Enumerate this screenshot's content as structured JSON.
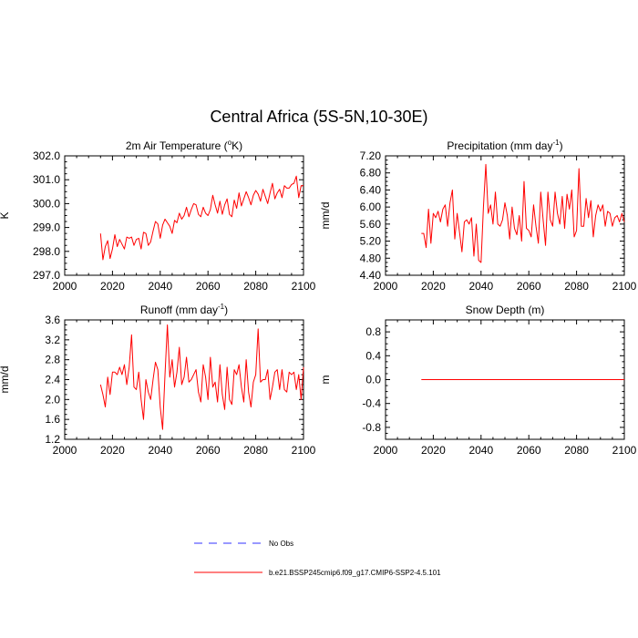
{
  "figure_title": "Central Africa (5S-5N,10-30E)",
  "legend": {
    "obs_label": "No Obs",
    "model_label": "b.e21.BSSP245cmip6.f09_g17.CMIP6-SSP2-4.5.101",
    "obs_color": "#3333ff",
    "model_color": "#ff0000"
  },
  "chart_data": [
    {
      "type": "line",
      "title": "2m Air Temperature (",
      "title_sup": "o",
      "title_suffix": "K)",
      "ylabel": "K",
      "xlim": [
        2000,
        2100
      ],
      "ylim": [
        297.0,
        302.0
      ],
      "xticks": [
        2000,
        2020,
        2040,
        2060,
        2080,
        2100
      ],
      "yticks": [
        297.0,
        298.0,
        299.0,
        300.0,
        301.0,
        302.0
      ],
      "ytick_labels": [
        "297.0",
        "298.0",
        "299.0",
        "300.0",
        "301.0",
        "302.0"
      ],
      "x": [
        2015,
        2016,
        2017,
        2018,
        2019,
        2020,
        2021,
        2022,
        2023,
        2024,
        2025,
        2026,
        2027,
        2028,
        2029,
        2030,
        2031,
        2032,
        2033,
        2034,
        2035,
        2036,
        2037,
        2038,
        2039,
        2040,
        2041,
        2042,
        2043,
        2044,
        2045,
        2046,
        2047,
        2048,
        2049,
        2050,
        2051,
        2052,
        2053,
        2054,
        2055,
        2056,
        2057,
        2058,
        2059,
        2060,
        2061,
        2062,
        2063,
        2064,
        2065,
        2066,
        2067,
        2068,
        2069,
        2070,
        2071,
        2072,
        2073,
        2074,
        2075,
        2076,
        2077,
        2078,
        2079,
        2080,
        2081,
        2082,
        2083,
        2084,
        2085,
        2086,
        2087,
        2088,
        2089,
        2090,
        2091,
        2092,
        2093,
        2094,
        2095,
        2096,
        2097,
        2098,
        2099,
        2100
      ],
      "series": [
        {
          "name": "b.e21.BSSP245cmip6.f09_g17.CMIP6-SSP2-4.5.101",
          "values": [
            298.75,
            297.65,
            298.2,
            298.45,
            297.7,
            298.1,
            298.7,
            298.2,
            298.5,
            298.3,
            298.1,
            298.6,
            298.55,
            298.6,
            298.25,
            298.5,
            298.55,
            298.1,
            298.8,
            298.75,
            298.25,
            298.4,
            298.85,
            299.25,
            299.15,
            298.55,
            299.1,
            299.35,
            299.2,
            299.05,
            298.75,
            299.3,
            299.2,
            299.6,
            299.35,
            299.5,
            299.85,
            299.45,
            299.75,
            300.0,
            299.95,
            299.55,
            299.45,
            299.85,
            299.6,
            299.5,
            299.75,
            300.35,
            299.95,
            299.6,
            300.1,
            299.55,
            299.95,
            300.2,
            299.55,
            299.45,
            300.15,
            299.8,
            300.45,
            299.9,
            300.2,
            300.5,
            300.25,
            299.95,
            300.35,
            300.55,
            300.4,
            300.1,
            300.6,
            300.3,
            300.0,
            300.45,
            300.85,
            300.2,
            300.45,
            300.6,
            300.25,
            300.75,
            300.65,
            300.65,
            300.8,
            300.85,
            301.15,
            300.25,
            300.75,
            300.75
          ]
        }
      ]
    },
    {
      "type": "line",
      "title": "Precipitation (mm day",
      "title_sup": "-1",
      "title_suffix": ")",
      "ylabel": "mm/d",
      "xlim": [
        2000,
        2100
      ],
      "ylim": [
        4.4,
        7.2
      ],
      "xticks": [
        2000,
        2020,
        2040,
        2060,
        2080,
        2100
      ],
      "yticks": [
        4.4,
        4.8,
        5.2,
        5.6,
        6.0,
        6.4,
        6.8,
        7.2
      ],
      "ytick_labels": [
        "4.40",
        "4.80",
        "5.20",
        "5.60",
        "6.00",
        "6.40",
        "6.80",
        "7.20"
      ],
      "x": [
        2015,
        2016,
        2017,
        2018,
        2019,
        2020,
        2021,
        2022,
        2023,
        2024,
        2025,
        2026,
        2027,
        2028,
        2029,
        2030,
        2031,
        2032,
        2033,
        2034,
        2035,
        2036,
        2037,
        2038,
        2039,
        2040,
        2041,
        2042,
        2043,
        2044,
        2045,
        2046,
        2047,
        2048,
        2049,
        2050,
        2051,
        2052,
        2053,
        2054,
        2055,
        2056,
        2057,
        2058,
        2059,
        2060,
        2061,
        2062,
        2063,
        2064,
        2065,
        2066,
        2067,
        2068,
        2069,
        2070,
        2071,
        2072,
        2073,
        2074,
        2075,
        2076,
        2077,
        2078,
        2079,
        2080,
        2081,
        2082,
        2083,
        2084,
        2085,
        2086,
        2087,
        2088,
        2089,
        2090,
        2091,
        2092,
        2093,
        2094,
        2095,
        2096,
        2097,
        2098,
        2099,
        2100
      ],
      "series": [
        {
          "name": "b.e21.BSSP245cmip6.f09_g17.CMIP6-SSP2-4.5.101",
          "values": [
            5.38,
            5.38,
            5.05,
            5.95,
            5.15,
            5.85,
            5.75,
            5.9,
            5.65,
            5.95,
            6.05,
            5.55,
            6.1,
            6.4,
            5.25,
            5.85,
            5.4,
            4.95,
            5.65,
            5.7,
            5.6,
            5.75,
            4.85,
            5.6,
            4.75,
            4.7,
            6.0,
            7.0,
            5.85,
            6.05,
            5.6,
            6.35,
            5.6,
            5.55,
            5.7,
            6.1,
            5.8,
            5.25,
            6.0,
            5.5,
            5.35,
            5.8,
            5.2,
            6.6,
            5.5,
            5.45,
            5.3,
            6.05,
            5.55,
            5.15,
            6.35,
            5.7,
            5.1,
            6.35,
            5.7,
            5.55,
            6.35,
            5.85,
            5.6,
            6.25,
            5.5,
            6.3,
            5.95,
            6.4,
            5.3,
            5.45,
            6.9,
            5.55,
            5.55,
            6.2,
            5.75,
            6.15,
            5.3,
            5.8,
            6.05,
            5.9,
            6.05,
            5.55,
            5.9,
            5.85,
            5.55,
            5.75,
            5.8,
            5.65,
            5.85,
            5.65
          ]
        }
      ]
    },
    {
      "type": "line",
      "title": "Runoff (mm day",
      "title_sup": "-1",
      "title_suffix": ")",
      "ylabel": "mm/d",
      "xlim": [
        2000,
        2100
      ],
      "ylim": [
        1.2,
        3.6
      ],
      "xticks": [
        2000,
        2020,
        2040,
        2060,
        2080,
        2100
      ],
      "yticks": [
        1.2,
        1.6,
        2.0,
        2.4,
        2.8,
        3.2,
        3.6
      ],
      "ytick_labels": [
        "1.2",
        "1.6",
        "2.0",
        "2.4",
        "2.8",
        "3.2",
        "3.6"
      ],
      "x": [
        2015,
        2016,
        2017,
        2018,
        2019,
        2020,
        2021,
        2022,
        2023,
        2024,
        2025,
        2026,
        2027,
        2028,
        2029,
        2030,
        2031,
        2032,
        2033,
        2034,
        2035,
        2036,
        2037,
        2038,
        2039,
        2040,
        2041,
        2042,
        2043,
        2044,
        2045,
        2046,
        2047,
        2048,
        2049,
        2050,
        2051,
        2052,
        2053,
        2054,
        2055,
        2056,
        2057,
        2058,
        2059,
        2060,
        2061,
        2062,
        2063,
        2064,
        2065,
        2066,
        2067,
        2068,
        2069,
        2070,
        2071,
        2072,
        2073,
        2074,
        2075,
        2076,
        2077,
        2078,
        2079,
        2080,
        2081,
        2082,
        2083,
        2084,
        2085,
        2086,
        2087,
        2088,
        2089,
        2090,
        2091,
        2092,
        2093,
        2094,
        2095,
        2096,
        2097,
        2098,
        2099,
        2100
      ],
      "series": [
        {
          "name": "b.e21.BSSP245cmip6.f09_g17.CMIP6-SSP2-4.5.101",
          "values": [
            2.3,
            2.1,
            1.85,
            2.45,
            2.1,
            2.55,
            2.55,
            2.5,
            2.65,
            2.5,
            2.7,
            2.3,
            2.65,
            3.3,
            2.25,
            2.2,
            2.55,
            2.0,
            1.6,
            2.4,
            2.15,
            2.0,
            2.4,
            2.75,
            2.6,
            1.85,
            1.4,
            2.5,
            3.5,
            2.45,
            2.8,
            2.25,
            2.55,
            3.05,
            2.3,
            2.45,
            2.85,
            2.35,
            2.4,
            2.5,
            2.6,
            2.15,
            1.95,
            2.7,
            2.45,
            2.0,
            2.85,
            2.25,
            2.35,
            1.95,
            2.7,
            2.1,
            1.8,
            2.65,
            2.0,
            1.9,
            2.6,
            2.5,
            2.7,
            2.25,
            1.95,
            2.8,
            2.15,
            1.85,
            2.35,
            2.5,
            3.42,
            2.35,
            2.4,
            2.4,
            2.6,
            2.0,
            2.25,
            2.55,
            2.6,
            2.2,
            2.6,
            2.2,
            2.15,
            2.55,
            2.5,
            2.55,
            2.2,
            2.5,
            2.0,
            2.65
          ]
        }
      ]
    },
    {
      "type": "line",
      "title": "Snow Depth (m)",
      "title_sup": "",
      "title_suffix": "",
      "ylabel": "m",
      "xlim": [
        2000,
        2100
      ],
      "ylim": [
        -1.0,
        1.0
      ],
      "xticks": [
        2000,
        2020,
        2040,
        2060,
        2080,
        2100
      ],
      "yticks": [
        -0.8,
        -0.4,
        0.0,
        0.4,
        0.8
      ],
      "ytick_labels": [
        "-0.8",
        "-0.4",
        "0.0",
        "0.4",
        "0.8"
      ],
      "x": [
        2015,
        2100
      ],
      "series": [
        {
          "name": "b.e21.BSSP245cmip6.f09_g17.CMIP6-SSP2-4.5.101",
          "values": [
            0.0,
            0.0
          ]
        }
      ]
    }
  ]
}
